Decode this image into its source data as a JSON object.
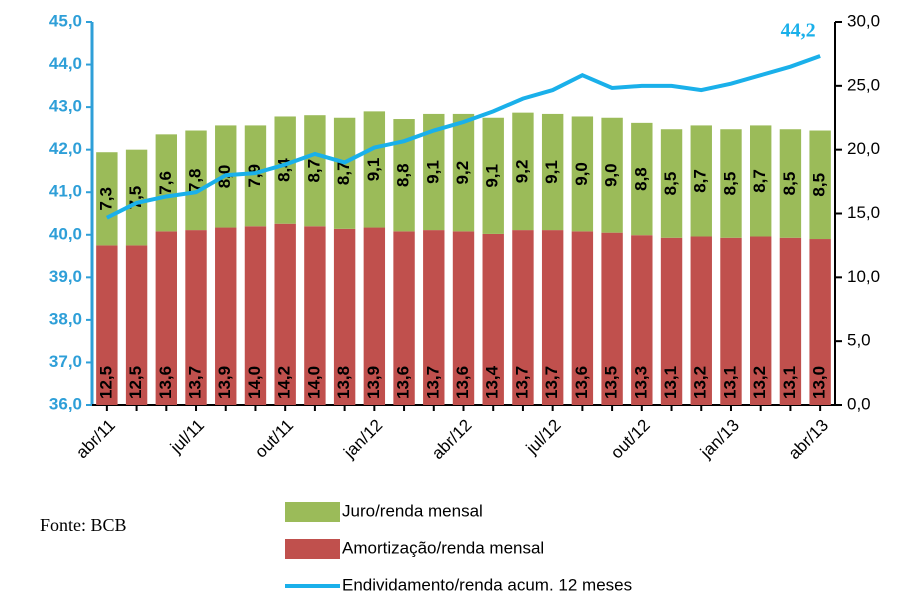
{
  "chart_data": {
    "type": "bar",
    "categories": [
      "abr/11",
      null,
      null,
      "jul/11",
      null,
      null,
      "out/11",
      null,
      null,
      "jan/12",
      null,
      null,
      "abr/12",
      null,
      null,
      "jul/12",
      null,
      null,
      "out/12",
      null,
      null,
      "jan/13",
      null,
      null,
      "abr/13"
    ],
    "series": [
      {
        "name": "Juro/renda mensal",
        "color": "#9bbb59",
        "axis": "y2",
        "stack": true,
        "values": [
          7.3,
          7.5,
          7.6,
          7.8,
          8.0,
          7.9,
          8.4,
          8.7,
          8.7,
          9.1,
          8.8,
          9.1,
          9.2,
          9.1,
          9.2,
          9.1,
          9.0,
          9.0,
          8.8,
          8.5,
          8.7,
          8.5,
          8.7,
          8.5,
          8.5
        ],
        "value_labels": [
          "7,3",
          "7,5",
          "7,6",
          "7,8",
          "8,0",
          "7,9",
          "8,4",
          "8,7",
          "8,7",
          "9,1",
          "8,8",
          "9,1",
          "9,2",
          "9,1",
          "9,2",
          "9,1",
          "9,0",
          "9,0",
          "8,8",
          "8,5",
          "8,7",
          "8,5",
          "8,7",
          "8,5",
          "8,5"
        ]
      },
      {
        "name": "Amortização/renda mensal",
        "color": "#c0504d",
        "axis": "y2",
        "stack": true,
        "values": [
          12.5,
          12.5,
          13.6,
          13.7,
          13.9,
          14.0,
          14.2,
          14.0,
          13.8,
          13.9,
          13.6,
          13.7,
          13.6,
          13.4,
          13.7,
          13.7,
          13.6,
          13.5,
          13.3,
          13.1,
          13.2,
          13.1,
          13.2,
          13.1,
          13.0
        ],
        "value_labels": [
          "12,5",
          "12,5",
          "13,6",
          "13,7",
          "13,9",
          "14,0",
          "14,2",
          "14,0",
          "13,8",
          "13,9",
          "13,6",
          "13,7",
          "13,6",
          "13,4",
          "13,7",
          "13,7",
          "13,6",
          "13,5",
          "13,3",
          "13,1",
          "13,2",
          "13,1",
          "13,2",
          "13,1",
          "13,0"
        ]
      },
      {
        "name": "Endividamento/renda acum. 12 meses",
        "color": "#1ab0ea",
        "type": "line",
        "values": [
          40.4,
          40.75,
          40.9,
          41.0,
          41.4,
          41.45,
          41.65,
          41.9,
          41.7,
          42.05,
          42.2,
          42.45,
          42.65,
          42.9,
          43.2,
          43.4,
          43.75,
          43.45,
          43.5,
          43.5,
          43.4,
          43.55,
          43.75,
          43.95,
          44.2
        ],
        "value_labels": [
          null,
          null,
          null,
          null,
          null,
          null,
          null,
          null,
          null,
          null,
          null,
          null,
          null,
          null,
          null,
          null,
          null,
          null,
          null,
          null,
          null,
          null,
          null,
          null,
          "44,2"
        ]
      }
    ],
    "ylim": [
      36,
      45
    ],
    "yticks": [
      {
        "value": 36,
        "label": "36,0"
      },
      {
        "value": 37,
        "label": "37,0"
      },
      {
        "value": 38,
        "label": "38,0"
      },
      {
        "value": 39,
        "label": "39,0"
      },
      {
        "value": 40,
        "label": "40,0"
      },
      {
        "value": 41,
        "label": "41,0"
      },
      {
        "value": 42,
        "label": "42,0"
      },
      {
        "value": 43,
        "label": "43,0"
      },
      {
        "value": 44,
        "label": "44,0"
      },
      {
        "value": 45,
        "label": "45,0"
      }
    ],
    "y2lim": [
      0,
      30
    ],
    "y2ticks": [
      {
        "value": 0,
        "label": "0,0"
      },
      {
        "value": 5,
        "label": "5,0"
      },
      {
        "value": 10,
        "label": "10,0"
      },
      {
        "value": 15,
        "label": "15,0"
      },
      {
        "value": 20,
        "label": "20,0"
      },
      {
        "value": 25,
        "label": "25,0"
      },
      {
        "value": 30,
        "label": "30,0"
      }
    ],
    "left_axis_color": "#2e9fd8",
    "annotation": "Fonte: BCB"
  }
}
